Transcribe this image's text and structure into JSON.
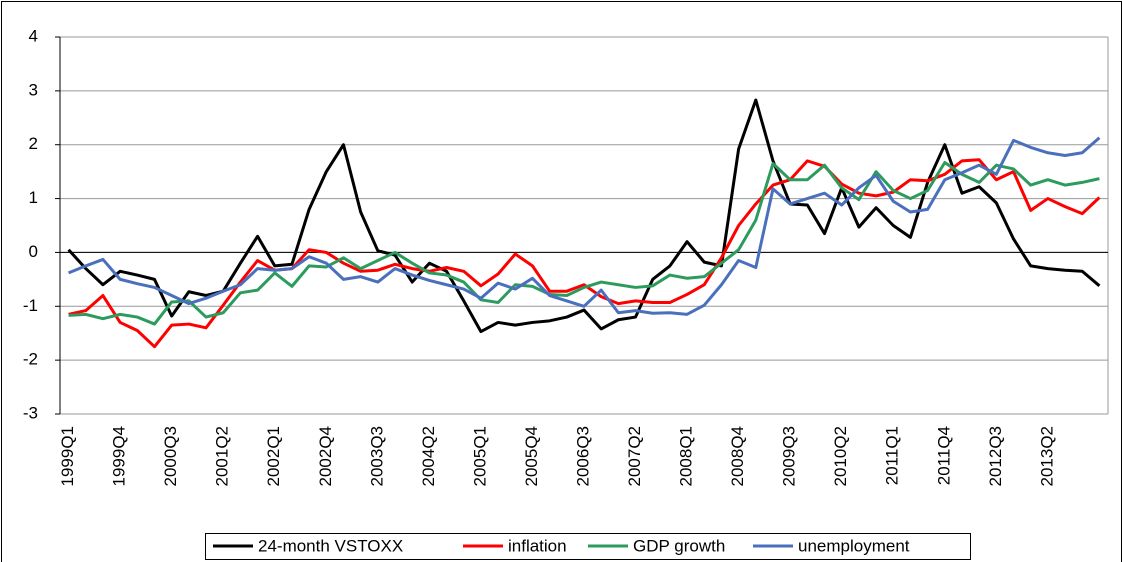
{
  "chart_data": {
    "type": "line",
    "categories": [
      "1999Q1",
      null,
      null,
      "1999Q4",
      null,
      null,
      "2000Q3",
      null,
      null,
      "2001Q2",
      null,
      null,
      "2002Q1",
      null,
      null,
      "2002Q4",
      null,
      null,
      "2003Q3",
      null,
      null,
      "2004Q2",
      null,
      null,
      "2005Q1",
      null,
      null,
      "2005Q4",
      null,
      null,
      "2006Q3",
      null,
      null,
      "2007Q2",
      null,
      null,
      "2008Q1",
      null,
      null,
      "2008Q4",
      null,
      null,
      "2009Q3",
      null,
      null,
      "2010Q2",
      null,
      null,
      "2011Q1",
      null,
      null,
      "2011Q4",
      null,
      null,
      "2012Q3",
      null,
      null,
      "2013Q2",
      null,
      null,
      null
    ],
    "series": [
      {
        "name": "24-month VSTOXX",
        "color": "#000000",
        "values": [
          0.05,
          -0.3,
          -0.6,
          -0.35,
          -0.42,
          -0.5,
          -1.18,
          -0.73,
          -0.8,
          -0.72,
          -0.2,
          0.3,
          -0.25,
          -0.22,
          0.8,
          1.5,
          2.0,
          0.75,
          0.03,
          -0.05,
          -0.55,
          -0.2,
          -0.35,
          -0.9,
          -1.47,
          -1.3,
          -1.35,
          -1.3,
          -1.27,
          -1.2,
          -1.07,
          -1.42,
          -1.25,
          -1.2,
          -0.5,
          -0.25,
          0.2,
          -0.18,
          -0.25,
          1.92,
          2.83,
          1.7,
          0.9,
          0.88,
          0.35,
          1.2,
          0.47,
          0.83,
          0.5,
          0.28,
          1.3,
          2.0,
          1.1,
          1.22,
          0.92,
          0.25,
          -0.25,
          -0.3,
          -0.33,
          -0.35,
          -0.62
        ]
      },
      {
        "name": "inflation",
        "color": "#ff0000",
        "values": [
          -1.15,
          -1.08,
          -0.8,
          -1.3,
          -1.45,
          -1.75,
          -1.35,
          -1.33,
          -1.4,
          -0.98,
          -0.55,
          -0.15,
          -0.33,
          -0.3,
          0.05,
          0.0,
          -0.2,
          -0.35,
          -0.33,
          -0.22,
          -0.3,
          -0.35,
          -0.28,
          -0.35,
          -0.62,
          -0.4,
          -0.03,
          -0.25,
          -0.72,
          -0.72,
          -0.6,
          -0.82,
          -0.95,
          -0.9,
          -0.93,
          -0.93,
          -0.78,
          -0.6,
          -0.1,
          0.5,
          0.9,
          1.25,
          1.35,
          1.7,
          1.6,
          1.27,
          1.1,
          1.05,
          1.12,
          1.35,
          1.33,
          1.45,
          1.7,
          1.72,
          1.35,
          1.5,
          0.78,
          1.0,
          0.85,
          0.72,
          1.02
        ]
      },
      {
        "name": "GDP growth",
        "color": "#2e9b5e",
        "values": [
          -1.17,
          -1.15,
          -1.23,
          -1.15,
          -1.2,
          -1.33,
          -0.92,
          -0.9,
          -1.2,
          -1.12,
          -0.75,
          -0.7,
          -0.38,
          -0.63,
          -0.25,
          -0.27,
          -0.1,
          -0.3,
          -0.15,
          0.0,
          -0.2,
          -0.38,
          -0.42,
          -0.55,
          -0.88,
          -0.93,
          -0.6,
          -0.63,
          -0.78,
          -0.8,
          -0.65,
          -0.55,
          -0.6,
          -0.65,
          -0.62,
          -0.42,
          -0.48,
          -0.45,
          -0.2,
          0.05,
          0.6,
          1.65,
          1.35,
          1.35,
          1.62,
          1.2,
          0.98,
          1.5,
          1.15,
          1.0,
          1.15,
          1.67,
          1.45,
          1.3,
          1.62,
          1.55,
          1.25,
          1.35,
          1.25,
          1.3,
          1.37
        ]
      },
      {
        "name": "unemployment",
        "color": "#4a6fbd",
        "values": [
          -0.38,
          -0.25,
          -0.13,
          -0.5,
          -0.58,
          -0.65,
          -0.8,
          -0.95,
          -0.85,
          -0.72,
          -0.6,
          -0.3,
          -0.33,
          -0.3,
          -0.08,
          -0.2,
          -0.5,
          -0.45,
          -0.55,
          -0.3,
          -0.42,
          -0.52,
          -0.6,
          -0.68,
          -0.85,
          -0.57,
          -0.68,
          -0.48,
          -0.8,
          -0.9,
          -1.0,
          -0.7,
          -1.12,
          -1.08,
          -1.13,
          -1.12,
          -1.15,
          -0.98,
          -0.6,
          -0.15,
          -0.28,
          1.18,
          0.9,
          1.0,
          1.1,
          0.88,
          1.2,
          1.43,
          0.95,
          0.75,
          0.8,
          1.35,
          1.48,
          1.62,
          1.45,
          2.08,
          1.95,
          1.85,
          1.8,
          1.85,
          2.13
        ]
      }
    ],
    "ylim": [
      -3,
      4
    ],
    "yticks": [
      -3,
      -2,
      -1,
      0,
      1,
      2,
      3,
      4
    ],
    "grid": true,
    "legend": "bottom"
  }
}
